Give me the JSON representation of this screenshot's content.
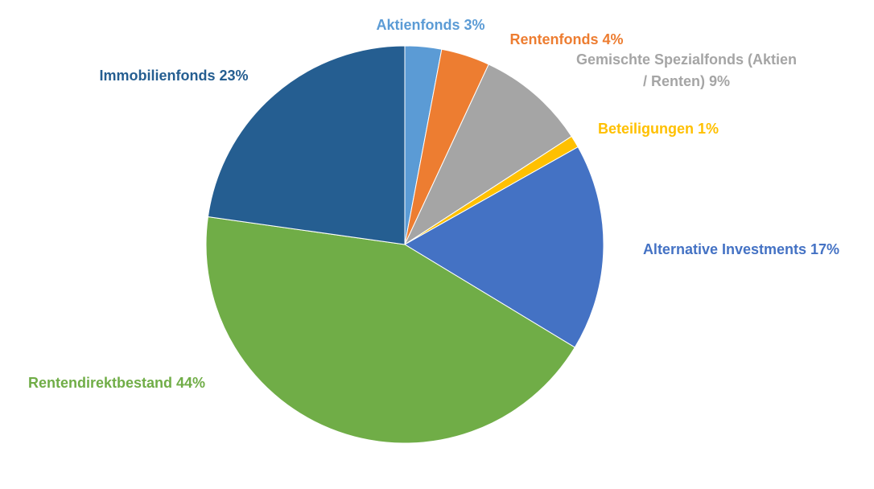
{
  "chart_data": {
    "type": "pie",
    "start": "12 o'clock, clockwise",
    "slices": [
      {
        "label": "Aktienfonds",
        "value": 3,
        "value_text": "3%",
        "color": "#5b9bd5"
      },
      {
        "label": "Rentenfonds",
        "value": 4,
        "value_text": "4%",
        "color": "#ed7d31"
      },
      {
        "label": "Gemischte Spezialfonds (Aktien / Renten)",
        "value": 9,
        "value_text": "9%",
        "color": "#a5a5a5"
      },
      {
        "label": "Beteiligungen",
        "value": 1,
        "value_text": "1%",
        "color": "#ffc000"
      },
      {
        "label": "Alternative Investments",
        "value": 17,
        "value_text": "17%",
        "color": "#4472c4"
      },
      {
        "label": "Rentendirektbestand",
        "value": 44,
        "value_text": "44%",
        "color": "#70ad47"
      },
      {
        "label": "Immobilienfonds",
        "value": 23,
        "value_text": "23%",
        "color": "#255e91"
      }
    ],
    "data_labels": [
      {
        "lines": [
          "Aktienfonds 3%"
        ]
      },
      {
        "lines": [
          "Rentenfonds 4%"
        ]
      },
      {
        "lines": [
          "Gemischte Spezialfonds (Aktien",
          "/ Renten) 9%"
        ]
      },
      {
        "lines": [
          "Beteiligungen 1%"
        ]
      },
      {
        "lines": [
          "Alternative Investments 17%"
        ]
      },
      {
        "lines": [
          "Rentendirektbestand 44%"
        ]
      },
      {
        "lines": [
          "Immobilienfonds 23%"
        ]
      }
    ],
    "legend": "none",
    "title": ""
  }
}
